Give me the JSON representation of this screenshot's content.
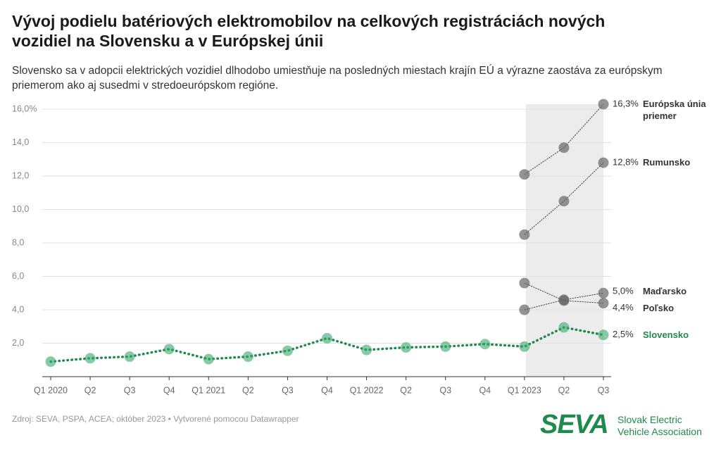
{
  "chart_data": {
    "type": "line",
    "title": "Vývoj podielu batériových elektromobilov na celkových registráciách nových vozidiel na Slovensku a v Európskej únii",
    "subtitle": "Slovensko sa v adopcii elektrických vozidiel dlhodobo umiestňuje na posledných miestach krajín EÚ a výrazne zaostáva za európskym priemerom ako aj susedmi v stredoeurópskom regióne.",
    "categories": [
      "Q1 2020",
      "Q2",
      "Q3",
      "Q4",
      "Q1 2021",
      "Q2",
      "Q3",
      "Q4",
      "Q1 2022",
      "Q2",
      "Q3",
      "Q4",
      "Q1 2023",
      "Q2",
      "Q3"
    ],
    "series": [
      {
        "name": "Európska únia priemer",
        "color": "#808080",
        "values": [
          null,
          null,
          null,
          null,
          null,
          null,
          null,
          null,
          null,
          null,
          null,
          null,
          12.1,
          13.7,
          16.3
        ],
        "value_labels": [
          null,
          null,
          null,
          null,
          null,
          null,
          null,
          null,
          null,
          null,
          null,
          null,
          null,
          null,
          "16,3%"
        ]
      },
      {
        "name": "Rumunsko",
        "color": "#808080",
        "values": [
          null,
          null,
          null,
          null,
          null,
          null,
          null,
          null,
          null,
          null,
          null,
          null,
          8.5,
          10.5,
          12.8
        ],
        "value_labels": [
          null,
          null,
          null,
          null,
          null,
          null,
          null,
          null,
          null,
          null,
          null,
          null,
          null,
          null,
          "12,8%"
        ]
      },
      {
        "name": "Maďarsko",
        "color": "#808080",
        "values": [
          null,
          null,
          null,
          null,
          null,
          null,
          null,
          null,
          null,
          null,
          null,
          null,
          4.0,
          4.6,
          5.0
        ],
        "value_labels": [
          null,
          null,
          null,
          null,
          null,
          null,
          null,
          null,
          null,
          null,
          null,
          null,
          null,
          null,
          "5,0%"
        ]
      },
      {
        "name": "Poľsko",
        "color": "#808080",
        "values": [
          null,
          null,
          null,
          null,
          null,
          null,
          null,
          null,
          null,
          null,
          null,
          null,
          5.6,
          4.55,
          4.4
        ],
        "value_labels": [
          null,
          null,
          null,
          null,
          null,
          null,
          null,
          null,
          null,
          null,
          null,
          null,
          null,
          null,
          "4,4%"
        ]
      },
      {
        "name": "Slovensko",
        "color": "#1f8a4c",
        "values": [
          0.9,
          1.1,
          1.2,
          1.65,
          1.05,
          1.2,
          1.55,
          2.3,
          1.6,
          1.75,
          1.8,
          1.95,
          1.8,
          2.95,
          2.5
        ],
        "value_labels": [
          null,
          null,
          null,
          null,
          null,
          null,
          null,
          null,
          null,
          null,
          null,
          null,
          null,
          null,
          "2,5%"
        ]
      }
    ],
    "ylim": [
      0,
      16.3
    ],
    "yticks": [
      {
        "value": 2,
        "label": "2,0"
      },
      {
        "value": 4,
        "label": "4,0"
      },
      {
        "value": 6,
        "label": "6,0"
      },
      {
        "value": 8,
        "label": "8,0"
      },
      {
        "value": 10,
        "label": "10,0"
      },
      {
        "value": 12,
        "label": "12,0"
      },
      {
        "value": 14,
        "label": "14,0"
      },
      {
        "value": 16,
        "label": "16,0%"
      }
    ],
    "grid": true,
    "source": "Zdroj: SEVA, PSPA, ACEA; október 2023 • Vytvorené pomocou Datawrapper",
    "logo": {
      "mark": "SEVA",
      "line1": "Slovak Electric",
      "line2": "Vehicle Association"
    }
  }
}
